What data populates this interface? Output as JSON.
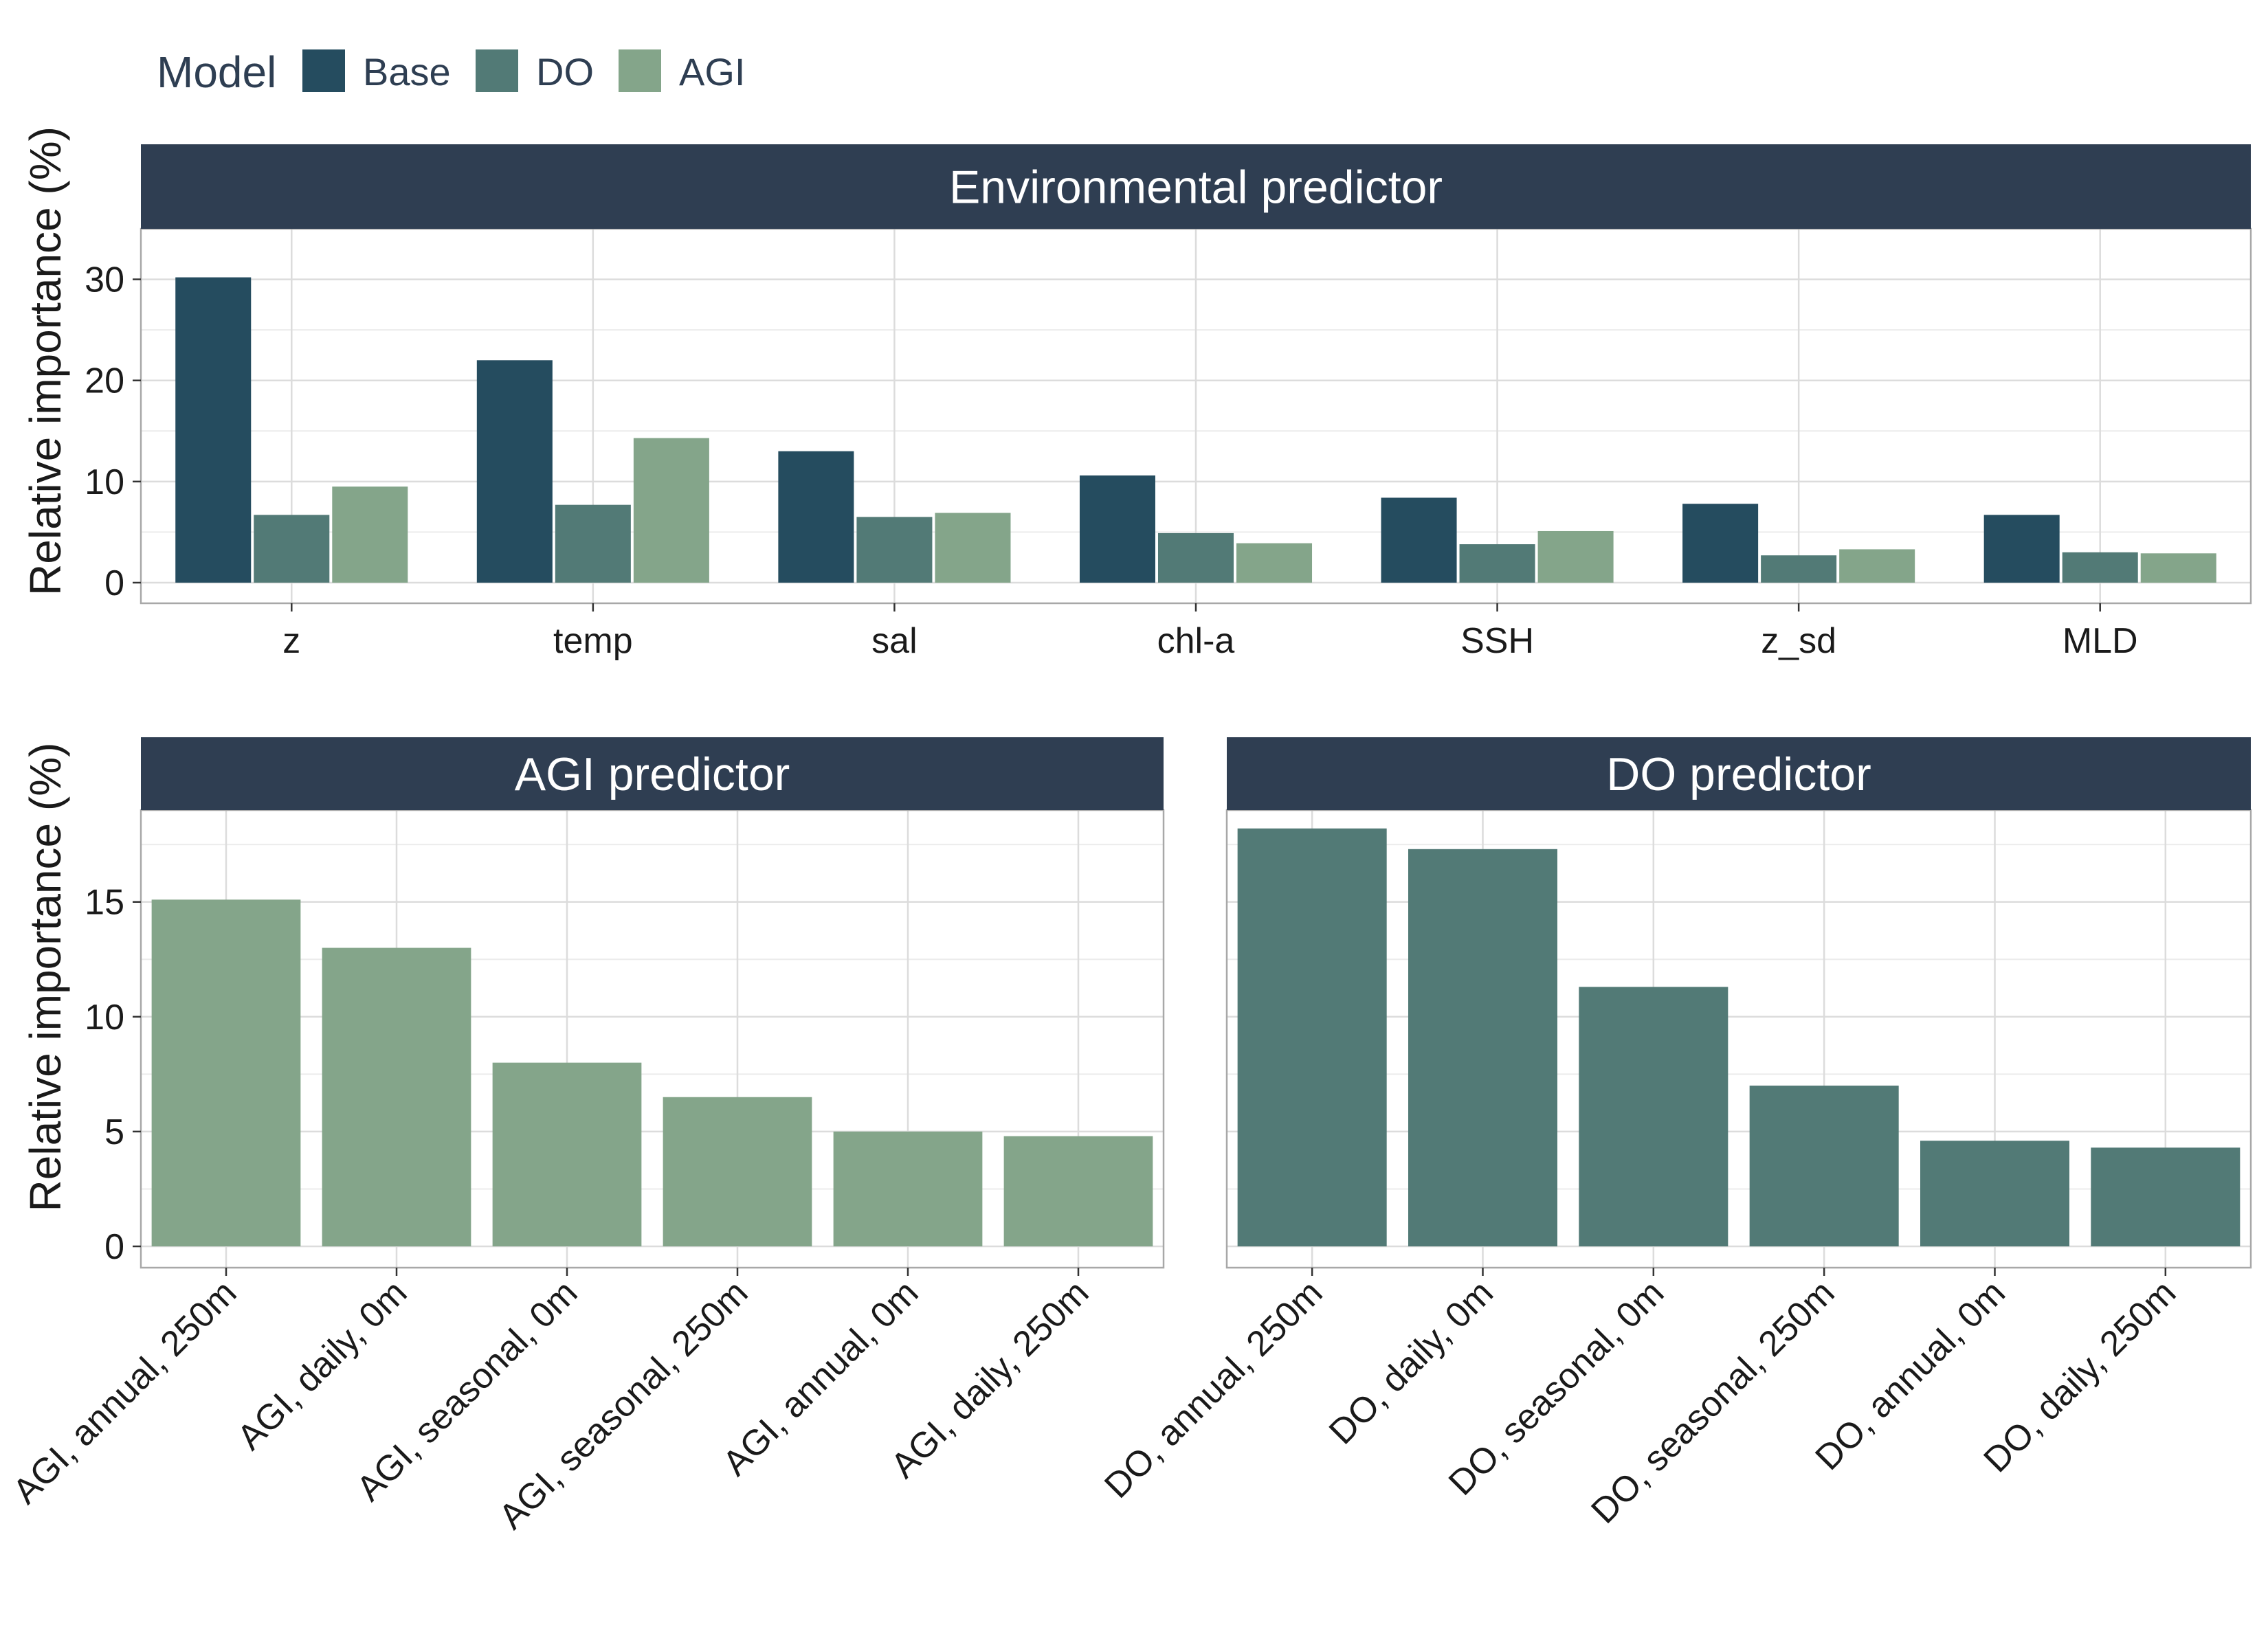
{
  "colors": {
    "Base": "#254c5f",
    "DO": "#527a76",
    "AGI": "#84a58a",
    "strip": "#2f3e52",
    "grid": "#dcdcdc",
    "frame": "#a8a8a8"
  },
  "legend": {
    "title": "Model",
    "items": [
      "Base",
      "DO",
      "AGI"
    ]
  },
  "chart_data": [
    {
      "type": "bar",
      "title": "Environmental predictor",
      "ylabel": "Relative importance (%)",
      "ylim": [
        0,
        35
      ],
      "yticks": [
        0,
        10,
        20,
        30
      ],
      "categories": [
        "z",
        "temp",
        "sal",
        "chl-a",
        "SSH",
        "z_sd",
        "MLD"
      ],
      "series": [
        {
          "name": "Base",
          "values": [
            30.2,
            22.0,
            13.0,
            10.6,
            8.4,
            7.8,
            6.7
          ]
        },
        {
          "name": "DO",
          "values": [
            6.7,
            7.7,
            6.5,
            4.9,
            3.8,
            2.7,
            3.0
          ]
        },
        {
          "name": "AGI",
          "values": [
            9.5,
            14.3,
            6.9,
            3.9,
            5.1,
            3.3,
            2.9
          ]
        }
      ],
      "grid": true
    },
    {
      "type": "bar",
      "title": "AGI predictor",
      "ylabel": "Relative importance (%)",
      "ylim": [
        0,
        19
      ],
      "yticks": [
        0,
        5,
        10,
        15
      ],
      "categories": [
        "AGI, annual, 250m",
        "AGI, daily, 0m",
        "AGI, seasonal, 0m",
        "AGI, seasonal, 250m",
        "AGI, annual, 0m",
        "AGI, daily, 250m"
      ],
      "series": [
        {
          "name": "AGI",
          "values": [
            15.1,
            13.0,
            8.0,
            6.5,
            5.0,
            4.8
          ]
        }
      ],
      "grid": true
    },
    {
      "type": "bar",
      "title": "DO predictor",
      "ylabel": "",
      "ylim": [
        0,
        19
      ],
      "yticks": [
        0,
        5,
        10,
        15
      ],
      "categories": [
        "DO, annual, 250m",
        "DO, daily, 0m",
        "DO, seasonal, 0m",
        "DO, seasonal, 250m",
        "DO, annual, 0m",
        "DO, daily, 250m"
      ],
      "series": [
        {
          "name": "DO",
          "values": [
            18.2,
            17.3,
            11.3,
            7.0,
            4.6,
            4.3
          ]
        }
      ],
      "grid": true
    }
  ]
}
